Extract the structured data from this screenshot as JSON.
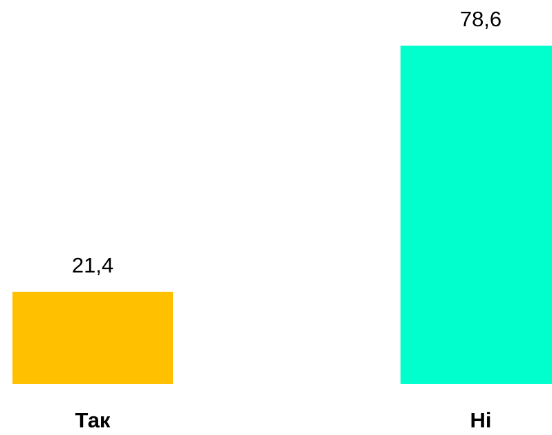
{
  "chart_data": {
    "type": "bar",
    "categories": [
      "Так",
      "Ні"
    ],
    "values": [
      21.4,
      78.6
    ],
    "value_labels": [
      "21,4",
      "78,6"
    ],
    "colors": [
      "#ffc000",
      "#00ffcc"
    ]
  }
}
